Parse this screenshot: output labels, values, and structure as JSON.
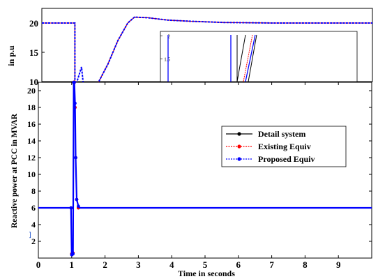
{
  "chart_data": [
    {
      "type": "line",
      "panel": "background-zoomed-view",
      "title": "",
      "xlabel": "",
      "ylabel": "in p.u",
      "yticks": [
        "20",
        "15",
        "10"
      ],
      "xlim": [
        0,
        10
      ],
      "ylim": [
        10,
        22.5
      ],
      "series": [
        {
          "name": "Detail system",
          "color": "#000000",
          "x": [
            0,
            1.0,
            1.0,
            1.05,
            1.2,
            1.25,
            1.3,
            1.5,
            1.7,
            2.0,
            2.3,
            2.6,
            2.8,
            3.2,
            3.8,
            4.5,
            5.5,
            7,
            10
          ],
          "y": [
            20,
            20,
            9,
            9,
            9,
            9,
            9,
            9,
            9,
            13,
            17,
            20,
            21,
            20.9,
            20.5,
            20.3,
            20.1,
            20,
            20
          ]
        },
        {
          "name": "Existing  Equiv",
          "color": "#ff0000",
          "x": [
            0,
            1.0,
            1.0,
            1.05,
            1.2,
            1.25,
            1.3,
            1.5,
            1.7,
            2.0,
            2.3,
            2.6,
            2.8,
            3.2,
            3.8,
            4.5,
            5.5,
            7,
            10
          ],
          "y": [
            20,
            20,
            9,
            9,
            9,
            9,
            9,
            9,
            9,
            13,
            17,
            20,
            21,
            20.9,
            20.5,
            20.3,
            20.1,
            20,
            20
          ]
        },
        {
          "name": "Proposed Equiv",
          "color": "#0000ff",
          "x": [
            0,
            1.0,
            1.0,
            1.05,
            1.2,
            1.25,
            1.3,
            1.5,
            1.7,
            2.0,
            2.3,
            2.6,
            2.8,
            3.2,
            3.8,
            4.5,
            5.5,
            7,
            10
          ],
          "y": [
            20,
            20,
            9,
            9,
            12.5,
            9,
            9,
            9,
            9,
            13,
            17,
            20,
            21,
            20.9,
            20.5,
            20.3,
            20.1,
            20,
            20
          ]
        }
      ],
      "inset": {
        "yticks": [
          "2",
          "1.5"
        ],
        "ylim": [
          1,
          2.1
        ]
      }
    },
    {
      "type": "line",
      "panel": "main",
      "title": "",
      "xlabel": "Time in seconds",
      "ylabel": "Reactive power at PCC in MVAR",
      "xticks": [
        0,
        1,
        2,
        3,
        4,
        5,
        6,
        7,
        8,
        9
      ],
      "yticks": [
        2,
        4,
        6,
        8,
        10,
        12,
        14,
        16,
        18,
        20
      ],
      "xlim": [
        0,
        10
      ],
      "ylim": [
        0,
        21
      ],
      "grid": false,
      "legend_position": "right",
      "series": [
        {
          "name": "Detail system",
          "color": "#000000",
          "marker": "circle",
          "x": [
            0,
            0.98,
            1.0,
            1.01,
            1.04,
            1.06,
            1.08,
            1.1,
            1.12,
            1.15,
            1.2,
            1.25,
            1.3,
            2,
            4,
            6,
            8,
            10
          ],
          "y": [
            6,
            6,
            0.5,
            0.5,
            0.6,
            21,
            21,
            18,
            12,
            7,
            6,
            6,
            6,
            6,
            6,
            6,
            6,
            6
          ]
        },
        {
          "name": "Existing  Equiv",
          "color": "#ff0000",
          "marker": "circle",
          "x": [
            0,
            0.98,
            1.0,
            1.01,
            1.04,
            1.06,
            1.08,
            1.1,
            1.12,
            1.15,
            1.2,
            1.25,
            1.3,
            2,
            4,
            6,
            8,
            10
          ],
          "y": [
            6,
            6,
            0.5,
            0.5,
            0.6,
            21,
            21,
            18,
            12,
            7,
            6,
            6,
            6,
            6,
            6,
            6,
            6,
            6
          ]
        },
        {
          "name": "Proposed Equiv",
          "color": "#0000ff",
          "marker": "circle",
          "x": [
            0,
            0.98,
            1.0,
            1.01,
            1.04,
            1.06,
            1.08,
            1.1,
            1.12,
            1.15,
            1.2,
            1.25,
            1.3,
            2,
            4,
            6,
            8,
            10
          ],
          "y": [
            6,
            6,
            0.4,
            0.4,
            0.5,
            21,
            21,
            18.5,
            12,
            7,
            6.2,
            6,
            6,
            6,
            6,
            6,
            6,
            6
          ]
        }
      ]
    }
  ]
}
